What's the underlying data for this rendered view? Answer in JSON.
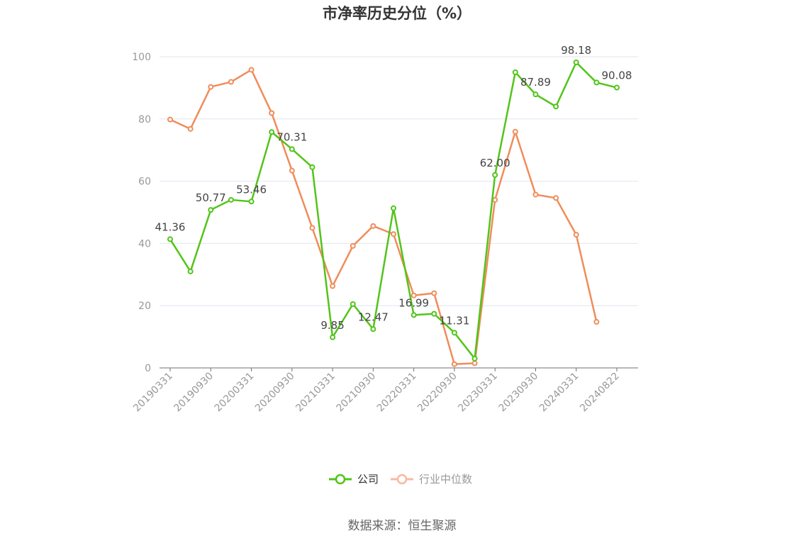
{
  "source_label": "数据来源：恒生聚源",
  "chart_data": {
    "type": "line",
    "title": "市净率历史分位（%）",
    "xlabel": "",
    "ylabel": "",
    "ylim": [
      0,
      100
    ],
    "yticks": [
      0,
      20,
      40,
      60,
      80,
      100
    ],
    "grid": true,
    "legend_position": "bottom",
    "x": [
      "20190331",
      "20190630",
      "20190930",
      "20191231",
      "20200331",
      "20200630",
      "20200930",
      "20201231",
      "20210331",
      "20210630",
      "20210930",
      "20211231",
      "20220331",
      "20220630",
      "20220930",
      "20221231",
      "20230331",
      "20230630",
      "20230930",
      "20231231",
      "20240331",
      "20240630",
      "20240822"
    ],
    "xtick_labels": [
      "20190331",
      "20190930",
      "20200331",
      "20200930",
      "20210331",
      "20210930",
      "20220331",
      "20220930",
      "20230331",
      "20230930",
      "20240331",
      "20240822"
    ],
    "series": [
      {
        "name": "公司",
        "color": "#52c41a",
        "values": [
          41.36,
          31.0,
          50.77,
          54.0,
          53.46,
          75.8,
          70.31,
          64.5,
          9.85,
          20.5,
          12.47,
          51.3,
          16.99,
          17.4,
          11.31,
          3.0,
          62.0,
          95.0,
          87.89,
          84.0,
          98.18,
          91.7,
          90.08
        ],
        "labels": {
          "0": "41.36",
          "2": "50.77",
          "4": "53.46",
          "6": "70.31",
          "8": "9.85",
          "10": "12.47",
          "12": "16.99",
          "14": "11.31",
          "16": "62.00",
          "18": "87.89",
          "20": "98.18",
          "22": "90.08"
        }
      },
      {
        "name": "行业中位数",
        "color": "#f08c5a",
        "values": [
          79.8,
          76.8,
          90.3,
          91.9,
          95.8,
          81.9,
          63.4,
          45.0,
          26.3,
          39.2,
          45.6,
          43.0,
          23.3,
          24.0,
          1.2,
          1.5,
          54.0,
          75.9,
          55.7,
          54.6,
          42.8,
          14.8,
          null
        ]
      }
    ]
  }
}
